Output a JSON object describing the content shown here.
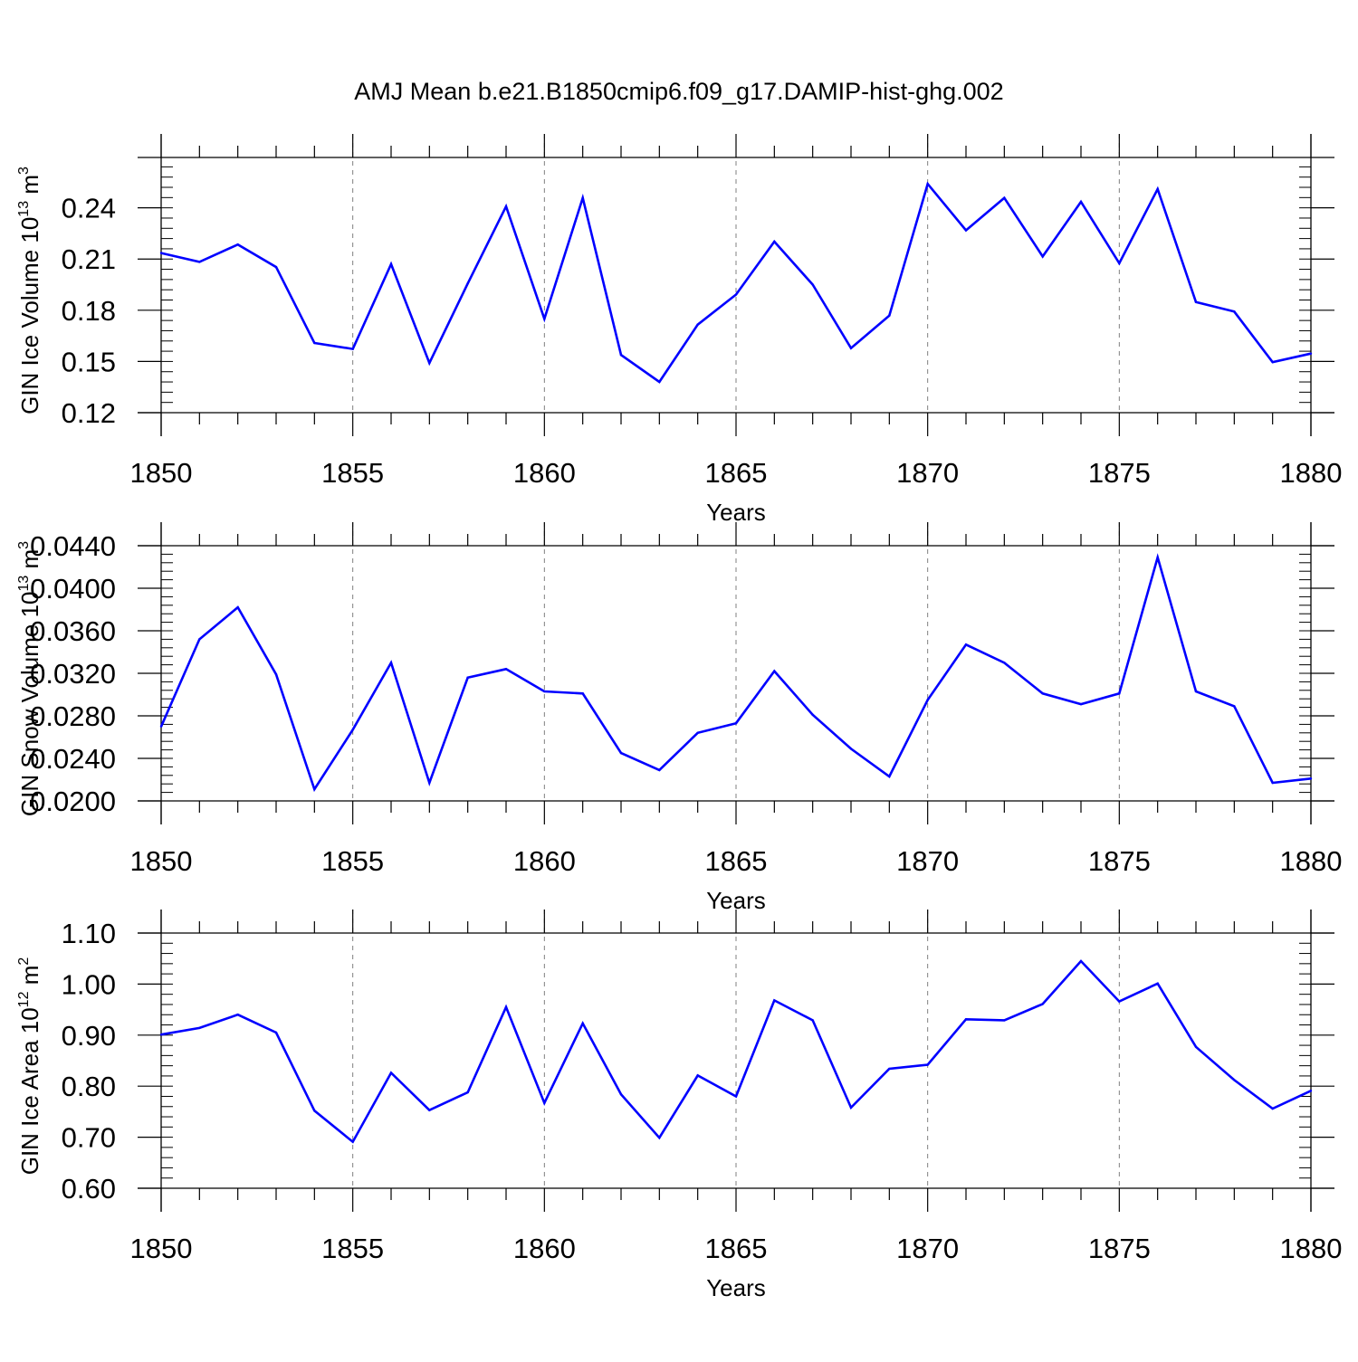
{
  "figure_title": "AMJ Mean b.e21.B1850cmip6.f09_g17.DAMIP-hist-ghg.002",
  "colors": {
    "line": "#0000ff",
    "axis": "#000000",
    "grid": "#7f7f7f"
  },
  "chart_data": [
    {
      "type": "line",
      "xlabel": "Years",
      "ylabel_main": "GIN Ice Volume 10",
      "ylabel_exp": "13",
      "ylabel_unit": " m",
      "ylabel_unit_exp": "3",
      "xlim": [
        1850,
        1880
      ],
      "ylim": [
        0.12,
        0.2695
      ],
      "yticks": [
        0.12,
        0.15,
        0.18,
        0.21,
        0.24
      ],
      "ytick_labels": [
        "0.12",
        "0.15",
        "0.18",
        "0.21",
        "0.24"
      ],
      "xticks": [
        1850,
        1855,
        1860,
        1865,
        1870,
        1875,
        1880
      ],
      "xtick_labels": [
        "1850",
        "1855",
        "1860",
        "1865",
        "1870",
        "1875",
        "1880"
      ],
      "grid_x": [
        1855,
        1860,
        1865,
        1870,
        1875
      ],
      "x": [
        1850,
        1851,
        1852,
        1853,
        1854,
        1855,
        1856,
        1857,
        1858,
        1859,
        1860,
        1861,
        1862,
        1863,
        1864,
        1865,
        1866,
        1867,
        1868,
        1869,
        1870,
        1871,
        1872,
        1873,
        1874,
        1875,
        1876,
        1877,
        1878,
        1879,
        1880
      ],
      "values": [
        0.2135,
        0.2083,
        0.2185,
        0.2053,
        0.1608,
        0.1573,
        0.207,
        0.1491,
        0.1957,
        0.2408,
        0.175,
        0.2458,
        0.1538,
        0.138,
        0.1716,
        0.1892,
        0.2202,
        0.195,
        0.1578,
        0.1769,
        0.254,
        0.2268,
        0.2458,
        0.2115,
        0.2435,
        0.2075,
        0.251,
        0.1848,
        0.1792,
        0.1496,
        0.1546
      ]
    },
    {
      "type": "line",
      "xlabel": "Years",
      "ylabel_main": "GIN Snow Volume 10",
      "ylabel_exp": "13",
      "ylabel_unit": " m",
      "ylabel_unit_exp": "3",
      "xlim": [
        1850,
        1880
      ],
      "ylim": [
        0.02,
        0.044
      ],
      "yticks": [
        0.02,
        0.024,
        0.028,
        0.032,
        0.036,
        0.04,
        0.044
      ],
      "ytick_labels": [
        "0.0200",
        "0.0240",
        "0.0280",
        "0.0320",
        "0.0360",
        "0.0400",
        "0.0440"
      ],
      "xticks": [
        1850,
        1855,
        1860,
        1865,
        1870,
        1875,
        1880
      ],
      "xtick_labels": [
        "1850",
        "1855",
        "1860",
        "1865",
        "1870",
        "1875",
        "1880"
      ],
      "grid_x": [
        1855,
        1860,
        1865,
        1870,
        1875
      ],
      "x": [
        1850,
        1851,
        1852,
        1853,
        1854,
        1855,
        1856,
        1857,
        1858,
        1859,
        1860,
        1861,
        1862,
        1863,
        1864,
        1865,
        1866,
        1867,
        1868,
        1869,
        1870,
        1871,
        1872,
        1873,
        1874,
        1875,
        1876,
        1877,
        1878,
        1879,
        1880
      ],
      "values": [
        0.027,
        0.0352,
        0.0382,
        0.0319,
        0.0211,
        0.0267,
        0.033,
        0.0217,
        0.0316,
        0.0324,
        0.0303,
        0.0301,
        0.0245,
        0.0229,
        0.0264,
        0.0273,
        0.0322,
        0.0281,
        0.0249,
        0.0223,
        0.0295,
        0.0347,
        0.033,
        0.0301,
        0.0291,
        0.0301,
        0.0429,
        0.0303,
        0.0289,
        0.0217,
        0.0221
      ]
    },
    {
      "type": "line",
      "xlabel": "Years",
      "ylabel_main": "GIN Ice Area 10",
      "ylabel_exp": "12",
      "ylabel_unit": " m",
      "ylabel_unit_exp": "2",
      "xlim": [
        1850,
        1880
      ],
      "ylim": [
        0.6,
        1.1
      ],
      "yticks": [
        0.6,
        0.7,
        0.8,
        0.9,
        1.0,
        1.1
      ],
      "ytick_labels": [
        "0.60",
        "0.70",
        "0.80",
        "0.90",
        "1.00",
        "1.10"
      ],
      "xticks": [
        1850,
        1855,
        1860,
        1865,
        1870,
        1875,
        1880
      ],
      "xtick_labels": [
        "1850",
        "1855",
        "1860",
        "1865",
        "1870",
        "1875",
        "1880"
      ],
      "grid_x": [
        1855,
        1860,
        1865,
        1870,
        1875
      ],
      "x": [
        1850,
        1851,
        1852,
        1853,
        1854,
        1855,
        1856,
        1857,
        1858,
        1859,
        1860,
        1861,
        1862,
        1863,
        1864,
        1865,
        1866,
        1867,
        1868,
        1869,
        1870,
        1871,
        1872,
        1873,
        1874,
        1875,
        1876,
        1877,
        1878,
        1879,
        1880
      ],
      "values": [
        0.901,
        0.914,
        0.94,
        0.905,
        0.752,
        0.691,
        0.826,
        0.753,
        0.788,
        0.955,
        0.767,
        0.923,
        0.784,
        0.699,
        0.821,
        0.78,
        0.968,
        0.929,
        0.758,
        0.834,
        0.842,
        0.931,
        0.929,
        0.961,
        1.045,
        0.966,
        1.001,
        0.877,
        0.812,
        0.756,
        0.791
      ]
    }
  ]
}
